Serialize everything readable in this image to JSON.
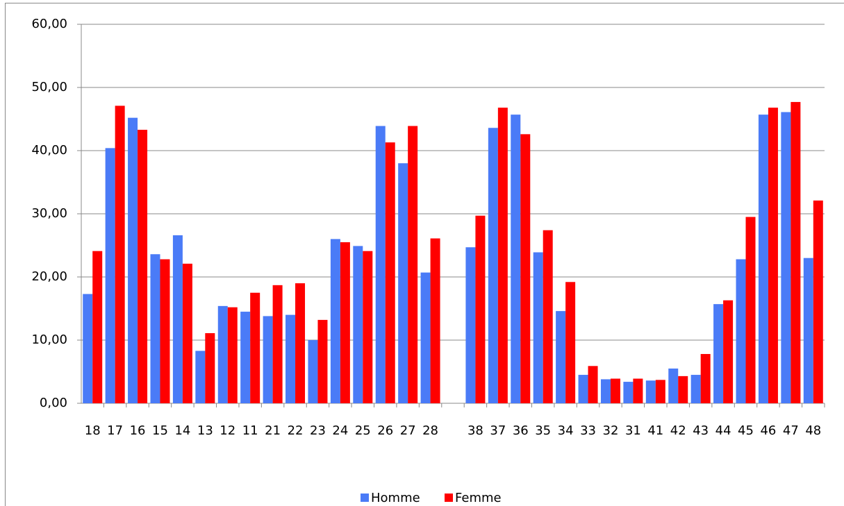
{
  "chart_data": {
    "type": "bar",
    "categories": [
      "18",
      "17",
      "16",
      "15",
      "14",
      "13",
      "12",
      "11",
      "21",
      "22",
      "23",
      "24",
      "25",
      "26",
      "27",
      "28",
      null,
      "38",
      "37",
      "36",
      "35",
      "34",
      "33",
      "32",
      "31",
      "41",
      "42",
      "43",
      "44",
      "45",
      "46",
      "47",
      "48"
    ],
    "series": [
      {
        "name": "Homme",
        "color": "#4a7bf7",
        "values": [
          17.3,
          40.4,
          45.2,
          23.6,
          26.6,
          8.3,
          15.4,
          14.5,
          13.8,
          14.0,
          10.0,
          26.0,
          24.9,
          43.9,
          38.0,
          20.7,
          null,
          24.7,
          43.6,
          45.7,
          23.9,
          14.6,
          4.5,
          3.8,
          3.4,
          3.6,
          5.5,
          4.5,
          15.7,
          22.8,
          45.7,
          46.1,
          23.0
        ]
      },
      {
        "name": "Femme",
        "color": "#ff0000",
        "values": [
          24.1,
          47.1,
          43.3,
          22.8,
          22.1,
          11.1,
          15.2,
          17.5,
          18.7,
          19.0,
          13.2,
          25.5,
          24.1,
          41.3,
          43.9,
          26.1,
          null,
          29.7,
          46.8,
          42.6,
          27.4,
          19.2,
          5.9,
          3.9,
          3.9,
          3.7,
          4.3,
          7.8,
          16.3,
          29.5,
          46.8,
          47.7,
          32.1
        ]
      }
    ],
    "ylim": [
      0,
      60
    ],
    "yticks": [
      {
        "value": 0,
        "label": "0,00"
      },
      {
        "value": 10,
        "label": "10,00"
      },
      {
        "value": 20,
        "label": "20,00"
      },
      {
        "value": 30,
        "label": "30,00"
      },
      {
        "value": 40,
        "label": "40,00"
      },
      {
        "value": 50,
        "label": "50,00"
      },
      {
        "value": 60,
        "label": "60,00"
      }
    ],
    "grid": true,
    "legend": "bottom"
  }
}
